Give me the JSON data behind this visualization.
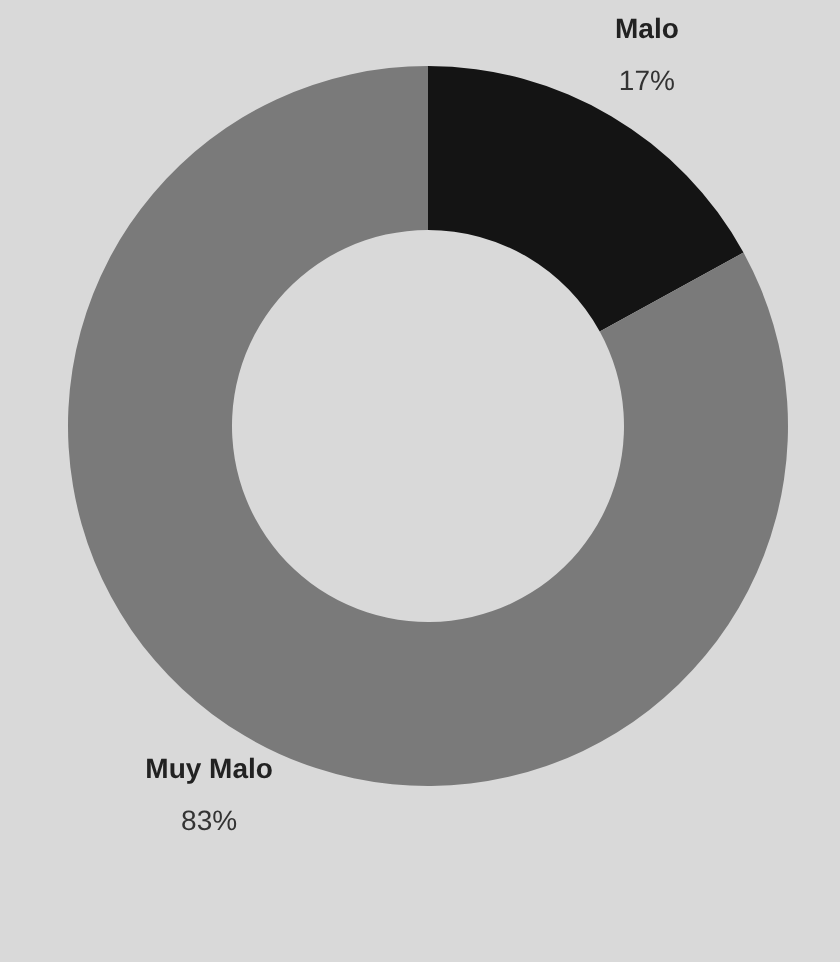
{
  "chart_data": {
    "type": "donut",
    "categories": [
      "Malo",
      "Muy Malo"
    ],
    "values": [
      17,
      83
    ],
    "colors": [
      "#141414",
      "#7a7a7a"
    ],
    "value_labels": [
      "17%",
      "83%"
    ]
  }
}
